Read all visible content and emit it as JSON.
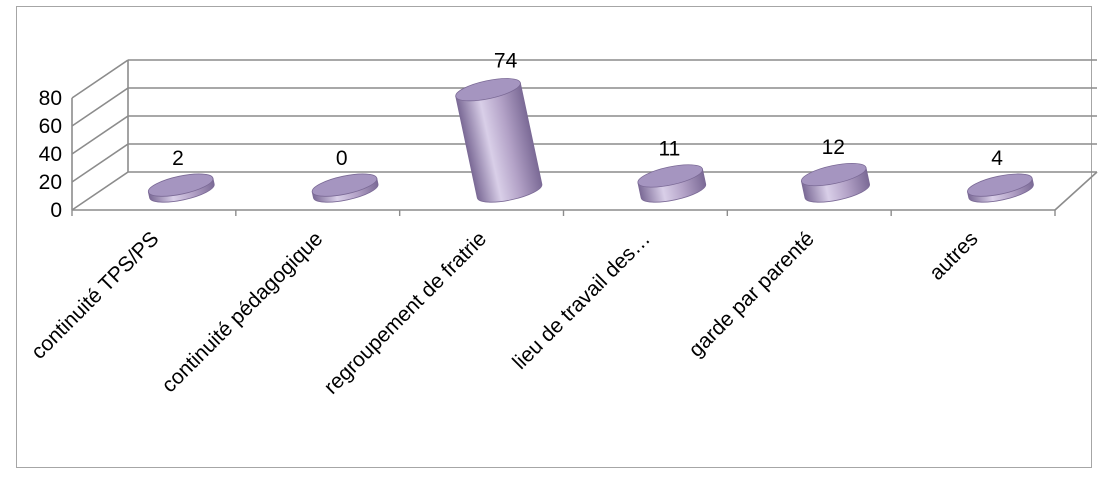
{
  "chart_data": {
    "type": "bar",
    "style": "3d-cylinder",
    "title": "",
    "xlabel": "",
    "ylabel": "",
    "categories": [
      "continuité TPS/PS",
      "continuité pédagogique",
      "regroupement de fratrie",
      "lieu de travail des…",
      "garde par parenté",
      "autres"
    ],
    "values": [
      2,
      0,
      74,
      11,
      12,
      4
    ],
    "data_labels": [
      "2",
      "0",
      "74",
      "11",
      "12",
      "4"
    ],
    "ylim": [
      0,
      80
    ],
    "yticks": [
      0,
      20,
      40,
      60,
      80
    ],
    "ytick_labels": [
      "0",
      "20",
      "40",
      "60",
      "80"
    ],
    "grid": true,
    "legend": "none",
    "colors": {
      "bar": "#b3a2c7",
      "bar_dark": "#7b6a96",
      "bar_top": "#a595c0",
      "gridline": "#8c8c8c",
      "border": "#a6a6a6"
    }
  }
}
